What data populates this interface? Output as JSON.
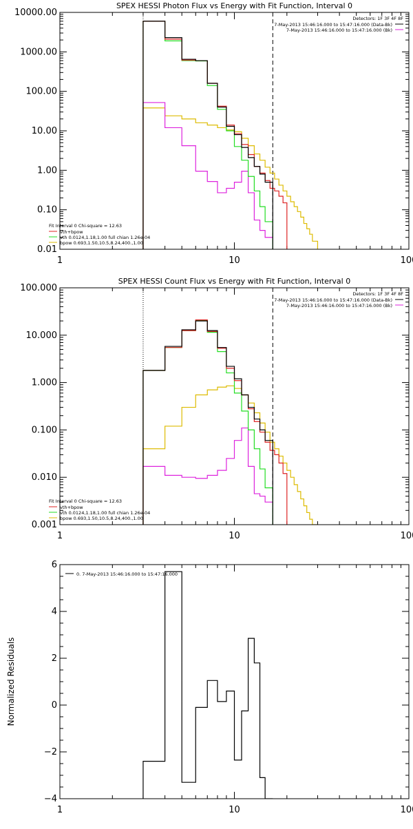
{
  "colors": {
    "background": "#ffffff",
    "axes": "#000000",
    "data": "#000000",
    "total": "#dd2222",
    "thermal": "#22dd22",
    "nonthermal": "#dd22dd",
    "powerlaw": "#ddbb00"
  },
  "chart_data": [
    {
      "id": "photon",
      "type": "line",
      "title": "SPEX HESSI Photon Flux vs Energy with Fit Function, Interval 0",
      "xlabel": "",
      "ylabel": "",
      "xscale": "log",
      "yscale": "log",
      "xlim": [
        1,
        100
      ],
      "ylim": [
        0.01,
        10000
      ],
      "xticks": [
        {
          "v": 1,
          "label": "1"
        },
        {
          "v": 10,
          "label": "10"
        },
        {
          "v": 100,
          "label": "100"
        }
      ],
      "yticks": [
        {
          "v": 0.01,
          "label": "0.01"
        },
        {
          "v": 0.1,
          "label": "0.10"
        },
        {
          "v": 1,
          "label": "1.00"
        },
        {
          "v": 10,
          "label": "10.00"
        },
        {
          "v": 100,
          "label": "100.00"
        },
        {
          "v": 1000,
          "label": "1000.00"
        },
        {
          "v": 10000,
          "label": "10000.00"
        }
      ],
      "vlines": [
        {
          "x": 3,
          "style": "dotted"
        },
        {
          "x": 16.6,
          "style": "dashed"
        }
      ],
      "legend_top": {
        "title": "Detectors: 1F 3F 4F 8F",
        "entries": [
          {
            "text": "7-May-2013 15:46:16.000 to 15:47:16.000 (Data-Bk)",
            "color": "#000000"
          },
          {
            "text": "7-May-2013 15:46:16.000 to 15:47:16.000 (Bk)",
            "color": "#dd22dd"
          }
        ]
      },
      "legend_bottom": {
        "title": "Fit Interval 0   Chi-square = 12.63",
        "entries": [
          {
            "text": "vth+bpow",
            "color": "#dd2222"
          },
          {
            "text": "vth 0.0124,1.18,1.00  full chian 1.26e-04",
            "color": "#22dd22"
          },
          {
            "text": "bpow 0.693,1.50,10.5,8.24,400.,1.00",
            "color": "#ddbb00"
          }
        ]
      },
      "series": [
        {
          "name": "Data-Bk",
          "color": "#000000",
          "edges": [
            3.0,
            4.0,
            5.0,
            6.0,
            7.0,
            8.0,
            9.0,
            10.0,
            11.0,
            12.0,
            13.0,
            14.0,
            15.0,
            16.6
          ],
          "values": [
            6000,
            2300,
            650,
            600,
            160,
            40,
            13,
            8.0,
            3.8,
            2.1,
            1.25,
            0.8,
            0.5
          ]
        },
        {
          "name": "vth+bpow",
          "color": "#dd2222",
          "edges": [
            3.0,
            4.0,
            5.0,
            6.0,
            7.0,
            8.0,
            9.0,
            10.0,
            11.0,
            12.0,
            13.0,
            14.0,
            15.0,
            16.0,
            17.0,
            18.0,
            19.0,
            20.0
          ],
          "values": [
            6000,
            2100,
            620,
            600,
            160,
            42,
            14,
            8.5,
            4.5,
            2.5,
            1.25,
            0.85,
            0.55,
            0.35,
            0.3,
            0.22,
            0.15
          ]
        },
        {
          "name": "vth",
          "color": "#22dd22",
          "edges": [
            3.0,
            4.0,
            5.0,
            6.0,
            7.0,
            8.0,
            9.0,
            10.0,
            11.0,
            12.0,
            13.0,
            14.0,
            15.0,
            16.6
          ],
          "values": [
            6000,
            1900,
            600,
            590,
            140,
            35,
            10,
            4.0,
            1.8,
            0.7,
            0.3,
            0.12,
            0.05
          ]
        },
        {
          "name": "bpow",
          "color": "#ddbb00",
          "edges": [
            3.0,
            4.0,
            5.0,
            6.0,
            7.0,
            8.0,
            9.0,
            10.0,
            11.0,
            12.0,
            13.0,
            14.0,
            15.0,
            16.0,
            17.0,
            18.0,
            19.0,
            20.0,
            21.0,
            22.0,
            23.0,
            24.0,
            25.0,
            26.0,
            27.0,
            28.0,
            30.0
          ],
          "values": [
            38,
            24,
            20,
            16,
            14,
            12,
            10.5,
            9.5,
            6.5,
            4.2,
            2.6,
            1.8,
            1.2,
            0.85,
            0.6,
            0.42,
            0.3,
            0.22,
            0.16,
            0.12,
            0.09,
            0.065,
            0.045,
            0.033,
            0.024,
            0.016
          ]
        },
        {
          "name": "Bk",
          "color": "#dd22dd",
          "edges": [
            3.0,
            4.0,
            5.0,
            6.0,
            7.0,
            8.0,
            9.0,
            10.0,
            11.0,
            12.0,
            13.0,
            14.0,
            15.0,
            16.6
          ],
          "values": [
            52,
            12,
            4.2,
            0.95,
            0.52,
            0.27,
            0.35,
            0.5,
            0.95,
            0.27,
            0.055,
            0.03,
            0.02
          ]
        }
      ]
    },
    {
      "id": "count",
      "type": "line",
      "title": "SPEX HESSI Count Flux vs Energy with Fit Function, Interval 0",
      "xlabel": "",
      "ylabel": "",
      "xscale": "log",
      "yscale": "log",
      "xlim": [
        1,
        100
      ],
      "ylim": [
        0.001,
        100
      ],
      "xticks": [
        {
          "v": 1,
          "label": "1"
        },
        {
          "v": 10,
          "label": "10"
        },
        {
          "v": 100,
          "label": "100"
        }
      ],
      "yticks": [
        {
          "v": 0.001,
          "label": "0.001"
        },
        {
          "v": 0.01,
          "label": "0.010"
        },
        {
          "v": 0.1,
          "label": "0.100"
        },
        {
          "v": 1,
          "label": "1.000"
        },
        {
          "v": 10,
          "label": "10.000"
        },
        {
          "v": 100,
          "label": "100.000"
        }
      ],
      "vlines": [
        {
          "x": 3,
          "style": "dotted"
        },
        {
          "x": 16.6,
          "style": "dashed"
        }
      ],
      "legend_top": {
        "title": "Detectors: 1F 3F 4F 8F",
        "entries": [
          {
            "text": "7-May-2013 15:46:16.000 to 15:47:16.000 (Data-Bk)",
            "color": "#000000"
          },
          {
            "text": "7-May-2013 15:46:16.000 to 15:47:16.000 (Bk)",
            "color": "#dd22dd"
          }
        ]
      },
      "legend_bottom": {
        "title": "Fit Interval 0   Chi-square = 12.63",
        "entries": [
          {
            "text": "vth+bpow",
            "color": "#dd2222"
          },
          {
            "text": "vth 0.0124,1.18,1.00  full chian 1.26e-04",
            "color": "#22dd22"
          },
          {
            "text": "bpow 0.693,1.50,10.5,8.24,400.,1.00",
            "color": "#ddbb00"
          }
        ]
      },
      "series": [
        {
          "name": "Data-Bk",
          "color": "#000000",
          "edges": [
            3.0,
            4.0,
            5.0,
            6.0,
            7.0,
            8.0,
            9.0,
            10.0,
            11.0,
            12.0,
            13.0,
            14.0,
            15.0,
            16.6
          ],
          "values": [
            1.8,
            5.8,
            13.0,
            20.0,
            12.5,
            5.5,
            2.2,
            1.2,
            0.55,
            0.3,
            0.17,
            0.1,
            0.06
          ]
        },
        {
          "name": "vth+bpow",
          "color": "#dd2222",
          "edges": [
            3.0,
            4.0,
            5.0,
            6.0,
            7.0,
            8.0,
            9.0,
            10.0,
            11.0,
            12.0,
            13.0,
            14.0,
            15.0,
            16.0,
            17.0,
            18.0,
            19.0,
            20.0
          ],
          "values": [
            1.8,
            5.5,
            12.5,
            21.0,
            12.0,
            5.3,
            2.0,
            1.1,
            0.55,
            0.28,
            0.15,
            0.09,
            0.055,
            0.037,
            0.03,
            0.02,
            0.012
          ]
        },
        {
          "name": "vth",
          "color": "#22dd22",
          "edges": [
            3.0,
            4.0,
            5.0,
            6.0,
            7.0,
            8.0,
            9.0,
            10.0,
            11.0,
            12.0,
            13.0,
            14.0,
            15.0,
            16.6
          ],
          "values": [
            1.8,
            5.5,
            12.5,
            20.5,
            11.5,
            4.5,
            1.6,
            0.6,
            0.25,
            0.1,
            0.04,
            0.015,
            0.006
          ]
        },
        {
          "name": "bpow",
          "color": "#ddbb00",
          "edges": [
            3.0,
            4.0,
            5.0,
            6.0,
            7.0,
            8.0,
            9.0,
            10.0,
            11.0,
            12.0,
            13.0,
            14.0,
            15.0,
            16.0,
            17.0,
            18.0,
            19.0,
            20.0,
            21.0,
            22.0,
            23.0,
            24.0,
            25.0,
            26.0,
            27.0,
            28.0,
            30.0
          ],
          "values": [
            0.04,
            0.12,
            0.3,
            0.55,
            0.7,
            0.8,
            0.85,
            0.75,
            0.55,
            0.37,
            0.23,
            0.14,
            0.09,
            0.055,
            0.04,
            0.028,
            0.02,
            0.014,
            0.01,
            0.007,
            0.005,
            0.0035,
            0.0025,
            0.0018,
            0.0013,
            0.0009
          ]
        },
        {
          "name": "Bk",
          "color": "#dd22dd",
          "edges": [
            3.0,
            4.0,
            5.0,
            6.0,
            7.0,
            8.0,
            9.0,
            10.0,
            11.0,
            12.0,
            13.0,
            14.0,
            15.0,
            16.6
          ],
          "values": [
            0.017,
            0.011,
            0.01,
            0.0095,
            0.011,
            0.014,
            0.025,
            0.06,
            0.11,
            0.017,
            0.0045,
            0.004,
            0.003
          ]
        }
      ]
    },
    {
      "id": "residuals",
      "type": "line",
      "title": "",
      "xlabel": "",
      "ylabel": "Normalized Residuals",
      "xscale": "log",
      "yscale": "linear",
      "xlim": [
        1,
        100
      ],
      "ylim": [
        -4,
        6
      ],
      "xticks": [
        {
          "v": 1,
          "label": "1"
        },
        {
          "v": 10,
          "label": "10"
        },
        {
          "v": 100,
          "label": "100"
        }
      ],
      "yticks": [
        {
          "v": -4,
          "label": "−4"
        },
        {
          "v": -2,
          "label": "−2"
        },
        {
          "v": 0,
          "label": "0"
        },
        {
          "v": 2,
          "label": "2"
        },
        {
          "v": 4,
          "label": "4"
        },
        {
          "v": 6,
          "label": "6"
        }
      ],
      "legend_top": {
        "title": "",
        "entries": [
          {
            "text": "0. 7-May-2013 15:46:16.000 to 15:47:16.000",
            "color": "#000000"
          }
        ]
      },
      "series": [
        {
          "name": "0.",
          "color": "#000000",
          "edges": [
            3.0,
            4.0,
            5.0,
            6.0,
            7.0,
            8.0,
            9.0,
            10.0,
            11.0,
            12.0,
            13.0,
            14.0,
            15.0,
            16.6
          ],
          "values": [
            -2.4,
            5.7,
            -3.3,
            -0.1,
            1.05,
            0.15,
            0.6,
            -2.35,
            -0.25,
            2.85,
            1.8,
            -3.1,
            -4.0
          ]
        }
      ]
    }
  ]
}
